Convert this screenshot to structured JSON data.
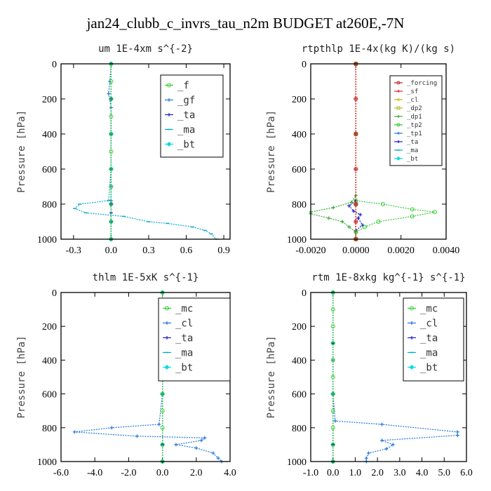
{
  "figure": {
    "title": "jan24_clubb_c_invrs_tau_n2m  BUDGET at260E,-7N"
  },
  "chart_data": [
    {
      "type": "line",
      "title": "um  1E-4xm s^{-2}",
      "ylabel": "Pressure [hPa]",
      "xlim": [
        -0.4,
        0.95
      ],
      "ylim": [
        1000,
        0
      ],
      "xticks": [
        -0.3,
        0.0,
        0.3,
        0.6,
        0.9
      ],
      "xtick_labels": [
        "-0.3",
        "0.0",
        "0.3",
        "0.6",
        "0.9"
      ],
      "yticks": [
        0,
        200,
        400,
        600,
        800,
        1000
      ],
      "ytick_labels": [
        "0",
        "200",
        "400",
        "600",
        "800",
        "1000"
      ],
      "legend_position": "top-right",
      "series": [
        {
          "name": "_f",
          "color": "#33cc33",
          "marker": "circle",
          "x": [
            0,
            0,
            0,
            0,
            0,
            0,
            0,
            0,
            0,
            0,
            0
          ],
          "y": [
            0,
            100,
            200,
            300,
            400,
            500,
            600,
            700,
            800,
            900,
            1000
          ]
        },
        {
          "name": "_gf",
          "color": "#2277dd",
          "marker": "cross",
          "x": [
            0.0,
            -0.01,
            -0.02,
            0.0,
            0.0,
            0.0,
            0.0,
            0.0,
            0.0,
            0.0
          ],
          "y": [
            0,
            100,
            170,
            250,
            400,
            600,
            700,
            780,
            900,
            1000
          ]
        },
        {
          "name": "_ta",
          "color": "#2222cc",
          "marker": "cross",
          "x": [
            0,
            0,
            0,
            0,
            0,
            0,
            0,
            0
          ],
          "y": [
            0,
            200,
            400,
            600,
            800,
            850,
            900,
            1000
          ]
        },
        {
          "name": "_ma",
          "color": "#00aacc",
          "marker": "dash",
          "x": [
            0.0,
            0.0,
            0.0,
            0.0,
            -0.02,
            -0.25,
            -0.29,
            -0.2,
            0.1,
            0.3,
            0.45,
            0.65,
            0.75,
            0.8,
            0.84
          ],
          "y": [
            0,
            200,
            400,
            600,
            780,
            800,
            825,
            850,
            870,
            900,
            910,
            930,
            950,
            970,
            1000
          ]
        },
        {
          "name": "_bt",
          "color": "#00dddd",
          "marker": "diamond",
          "x": [
            0,
            0,
            0,
            0,
            0,
            0,
            0
          ],
          "y": [
            0,
            200,
            400,
            600,
            800,
            900,
            1000
          ]
        }
      ]
    },
    {
      "type": "line",
      "title": "rtpthlp  1E-4x(kg K)/(kg s)",
      "ylabel": "Pressure [hPa]",
      "xlim": [
        -0.002,
        0.004
      ],
      "ylim": [
        1000,
        0
      ],
      "xticks": [
        -0.002,
        0.0,
        0.002,
        0.004
      ],
      "xtick_labels": [
        "-0.0020",
        "0.0000",
        "0.0020",
        "0.0040"
      ],
      "yticks": [
        0,
        200,
        400,
        600,
        800,
        1000
      ],
      "ytick_labels": [
        "0",
        "200",
        "400",
        "600",
        "800",
        "1000"
      ],
      "legend_position": "top-right",
      "series": [
        {
          "name": "_forcing",
          "color": "#cc2222",
          "marker": "circle",
          "x": [
            0,
            0,
            0,
            0,
            0,
            0,
            0
          ],
          "y": [
            0,
            200,
            400,
            600,
            800,
            900,
            1000
          ]
        },
        {
          "name": "_sf",
          "color": "#dd2222",
          "marker": "cross",
          "x": [
            0,
            0,
            0,
            0,
            0,
            0,
            0
          ],
          "y": [
            0,
            200,
            400,
            600,
            800,
            900,
            1000
          ]
        },
        {
          "name": "_cl",
          "color": "#ddaa00",
          "marker": "cross",
          "x": [
            0,
            0,
            0,
            0
          ],
          "y": [
            0,
            400,
            800,
            1000
          ]
        },
        {
          "name": "_dp2",
          "color": "#bbbb33",
          "marker": "square",
          "x": [
            0,
            0,
            0,
            0
          ],
          "y": [
            0,
            400,
            800,
            1000
          ]
        },
        {
          "name": "_dp1",
          "color": "#33aa33",
          "marker": "cross",
          "x": [
            0.0,
            0.0,
            -0.0002,
            -0.001,
            -0.002,
            -0.002,
            -0.0012,
            -0.0006,
            -0.0003,
            0.0,
            0.0
          ],
          "y": [
            0,
            750,
            790,
            820,
            845,
            855,
            880,
            900,
            930,
            960,
            1000
          ]
        },
        {
          "name": "_tp2",
          "color": "#33cc33",
          "marker": "circle",
          "x": [
            0.0,
            0.0,
            0.0012,
            0.0025,
            0.0035,
            0.0025,
            0.001,
            0.0004,
            0.0,
            0.0
          ],
          "y": [
            0,
            780,
            800,
            830,
            845,
            870,
            900,
            930,
            960,
            1000
          ]
        },
        {
          "name": "_tp1",
          "color": "#2277dd",
          "marker": "cross",
          "x": [
            0,
            0,
            0,
            0
          ],
          "y": [
            0,
            400,
            800,
            1000
          ]
        },
        {
          "name": "_ta",
          "color": "#2222cc",
          "marker": "cross",
          "x": [
            0.0,
            0.0,
            -0.0003,
            -0.0001,
            0.0002,
            0.0001,
            0.0003,
            0.0,
            0.0
          ],
          "y": [
            0,
            780,
            810,
            840,
            860,
            880,
            920,
            950,
            1000
          ]
        },
        {
          "name": "_ma",
          "color": "#00aacc",
          "marker": "dash",
          "x": [
            0,
            0,
            0,
            0
          ],
          "y": [
            0,
            400,
            800,
            1000
          ]
        },
        {
          "name": "_bt",
          "color": "#00dddd",
          "marker": "diamond",
          "x": [
            0,
            0,
            0,
            0
          ],
          "y": [
            0,
            400,
            800,
            1000
          ]
        }
      ]
    },
    {
      "type": "line",
      "title": "thlm  1E-5xK s^{-1}",
      "ylabel": "Pressure [hPa]",
      "xlim": [
        -6.0,
        4.0
      ],
      "ylim": [
        1000,
        0
      ],
      "xticks": [
        -6,
        -4,
        -2,
        0,
        2,
        4
      ],
      "xtick_labels": [
        "-6.0",
        "-4.0",
        "-2.0",
        "0.0",
        "2.0",
        "4.0"
      ],
      "yticks": [
        0,
        200,
        400,
        600,
        800,
        1000
      ],
      "ytick_labels": [
        "0",
        "200",
        "400",
        "600",
        "800",
        "1000"
      ],
      "legend_position": "top-right",
      "series": [
        {
          "name": "_mc",
          "color": "#33cc33",
          "marker": "circle",
          "x": [
            0,
            0,
            0,
            0,
            0,
            0,
            0,
            0,
            0,
            0,
            0
          ],
          "y": [
            0,
            100,
            200,
            300,
            400,
            500,
            600,
            700,
            800,
            900,
            1000
          ]
        },
        {
          "name": "_cl",
          "color": "#2277dd",
          "marker": "cross",
          "x": [
            0.0,
            0.0,
            0.0,
            -0.2,
            -3.0,
            -5.2,
            -1.5,
            2.5,
            2.3,
            0.8,
            2.0,
            3.0,
            3.3,
            3.5
          ],
          "y": [
            0,
            400,
            600,
            780,
            800,
            825,
            850,
            860,
            875,
            900,
            920,
            950,
            980,
            1000
          ]
        },
        {
          "name": "_ta",
          "color": "#2222cc",
          "marker": "cross",
          "x": [
            0,
            0,
            0,
            0,
            0
          ],
          "y": [
            0,
            300,
            600,
            900,
            1000
          ]
        },
        {
          "name": "_ma",
          "color": "#00aacc",
          "marker": "dash",
          "x": [
            0,
            0,
            0,
            0,
            0
          ],
          "y": [
            0,
            300,
            600,
            900,
            1000
          ]
        },
        {
          "name": "_bt",
          "color": "#00dddd",
          "marker": "diamond",
          "x": [
            0,
            0,
            0,
            0,
            0
          ],
          "y": [
            0,
            300,
            600,
            900,
            1000
          ]
        }
      ]
    },
    {
      "type": "line",
      "title": "rtm  1E-8xkg kg^{-1} s^{-1}",
      "ylabel": "Pressure [hPa]",
      "xlim": [
        -1.0,
        6.0
      ],
      "ylim": [
        1000,
        0
      ],
      "xticks": [
        -1,
        0,
        1,
        2,
        3,
        4,
        5,
        6
      ],
      "xtick_labels": [
        "-1.0",
        "0.0",
        "1.0",
        "2.0",
        "3.0",
        "4.0",
        "5.0",
        "6.0"
      ],
      "yticks": [
        0,
        200,
        400,
        600,
        800,
        1000
      ],
      "ytick_labels": [
        "0",
        "200",
        "400",
        "600",
        "800",
        "1000"
      ],
      "legend_position": "top-right",
      "series": [
        {
          "name": "_mc",
          "color": "#33cc33",
          "marker": "circle",
          "x": [
            0,
            0,
            0,
            0,
            0,
            0,
            0,
            0,
            0,
            0,
            0
          ],
          "y": [
            0,
            100,
            200,
            300,
            400,
            500,
            600,
            700,
            800,
            900,
            1000
          ]
        },
        {
          "name": "_cl",
          "color": "#2277dd",
          "marker": "cross",
          "x": [
            0.0,
            0.0,
            0.0,
            0.1,
            2.2,
            5.6,
            5.6,
            2.2,
            2.7,
            2.4,
            1.6,
            1.5,
            1.5
          ],
          "y": [
            0,
            400,
            600,
            760,
            780,
            825,
            845,
            875,
            900,
            925,
            950,
            980,
            1000
          ]
        },
        {
          "name": "_ta",
          "color": "#2222cc",
          "marker": "cross",
          "x": [
            0,
            0,
            0,
            0,
            0
          ],
          "y": [
            0,
            300,
            600,
            900,
            1000
          ]
        },
        {
          "name": "_ma",
          "color": "#00aacc",
          "marker": "dash",
          "x": [
            0,
            0,
            0,
            0,
            0
          ],
          "y": [
            0,
            300,
            600,
            900,
            1000
          ]
        },
        {
          "name": "_bt",
          "color": "#00dddd",
          "marker": "diamond",
          "x": [
            0,
            0,
            0,
            0,
            0
          ],
          "y": [
            0,
            300,
            600,
            900,
            1000
          ]
        }
      ]
    }
  ]
}
